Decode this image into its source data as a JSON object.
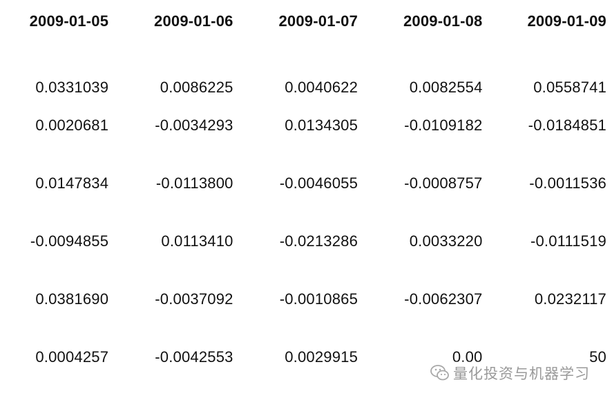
{
  "table": {
    "columns": [
      "2009-01-05",
      "2009-01-06",
      "2009-01-07",
      "2009-01-08",
      "2009-01-09"
    ],
    "rows": [
      [
        "0.0331039",
        "0.0086225",
        "0.0040622",
        "0.0082554",
        "0.0558741"
      ],
      [
        "0.0020681",
        "-0.0034293",
        "0.0134305",
        "-0.0109182",
        "-0.0184851"
      ],
      [
        "0.0147834",
        "-0.0113800",
        "-0.0046055",
        "-0.0008757",
        "-0.0011536"
      ],
      [
        "-0.0094855",
        "0.0113410",
        "-0.0213286",
        "0.0033220",
        "-0.0111519"
      ],
      [
        "0.0381690",
        "-0.0037092",
        "-0.0010865",
        "-0.0062307",
        "0.0232117"
      ],
      [
        "0.0004257",
        "-0.0042553",
        "0.0029915",
        "0.00",
        "50"
      ]
    ]
  },
  "watermark": {
    "icon": "wechat-icon",
    "text": "量化投资与机器学习"
  }
}
